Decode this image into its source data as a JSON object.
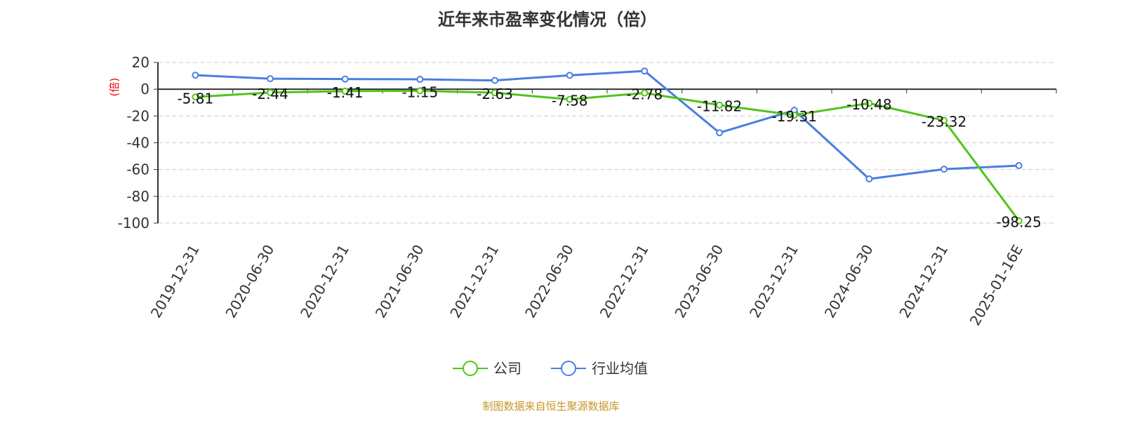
{
  "chart_data": {
    "type": "line",
    "title": "近年来市盈率变化情况（倍）",
    "ylabel": "(倍)",
    "categories": [
      "2019-12-31",
      "2020-06-30",
      "2020-12-31",
      "2021-06-30",
      "2021-12-31",
      "2022-06-30",
      "2022-12-31",
      "2023-06-30",
      "2023-12-31",
      "2024-06-30",
      "2024-12-31",
      "2025-01-16E"
    ],
    "ylim": [
      -100,
      20
    ],
    "yticks": [
      20,
      0,
      -20,
      -40,
      -60,
      -80,
      -100
    ],
    "grid": true,
    "legend_position": "bottom",
    "series": [
      {
        "name": "公司",
        "color": "#52c41a",
        "values": [
          -5.81,
          -2.44,
          -1.41,
          -1.15,
          -2.63,
          -7.58,
          -2.78,
          -11.82,
          -19.31,
          -10.48,
          -23.32,
          -98.25
        ],
        "labels": [
          "-5.81",
          "-2.44",
          "-1.41",
          "-1.15",
          "-2.63",
          "-7.58",
          "-2.78",
          "-11.82",
          "-19.31",
          "-10.48",
          "-23.32",
          "-98.25"
        ]
      },
      {
        "name": "行业均值",
        "color": "#4a7ee0",
        "values": [
          10.5,
          7.9,
          7.6,
          7.4,
          6.6,
          10.4,
          13.6,
          -32.5,
          -15.7,
          -67,
          -59.7,
          -57
        ]
      }
    ]
  },
  "source": "制图数据来自恒生聚源数据库"
}
